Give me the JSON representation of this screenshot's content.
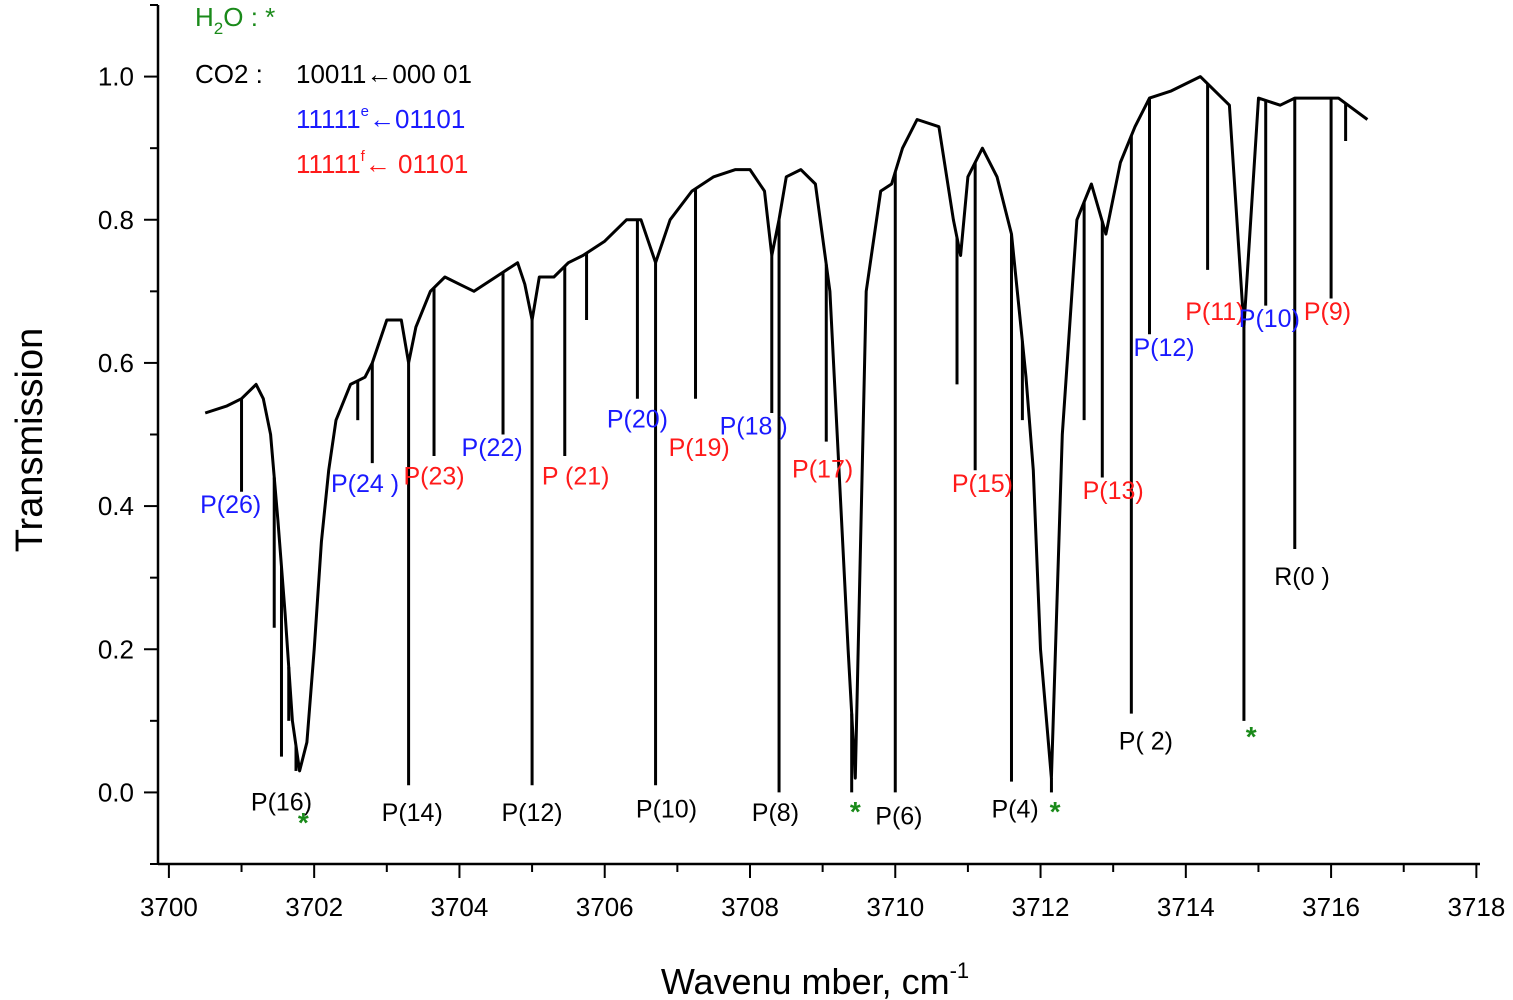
{
  "chart_data": {
    "type": "line",
    "title": "",
    "xlabel_main": "Wavenu mber, cm",
    "xlabel_sup": "-1",
    "ylabel": "Transmission",
    "xlim": [
      3699.85,
      3718.05
    ],
    "ylim": [
      -0.1,
      1.1
    ],
    "x_ticks": [
      3700,
      3702,
      3704,
      3706,
      3708,
      3710,
      3712,
      3714,
      3716,
      3718
    ],
    "x_tick_labels": [
      "3700",
      "3702",
      "3704",
      "3706",
      "3708",
      "3710",
      "3712",
      "3714",
      "3716",
      "3718"
    ],
    "y_ticks": [
      0.0,
      0.2,
      0.4,
      0.6,
      0.8,
      1.0
    ],
    "y_tick_labels": [
      "0.0",
      "0.2",
      "0.4",
      "0.6",
      "0.8",
      "1.0"
    ],
    "line_color": "#000000",
    "series": [
      {
        "x": [
          3700.5,
          3700.8,
          3701.0,
          3701.1,
          3701.2,
          3701.3,
          3701.4,
          3701.5,
          3701.6,
          3701.7,
          3701.8,
          3701.9,
          3702.0,
          3702.1,
          3702.2,
          3702.3,
          3702.5,
          3702.7,
          3702.8,
          3703.0,
          3703.2,
          3703.3,
          3703.4,
          3703.6,
          3703.8,
          3704.0,
          3704.2,
          3704.5,
          3704.8,
          3704.9,
          3705.0,
          3705.1,
          3705.3,
          3705.5,
          3705.7,
          3706.0,
          3706.3,
          3706.5,
          3706.7,
          3706.9,
          3707.2,
          3707.5,
          3707.8,
          3708.0,
          3708.2,
          3708.3,
          3708.4,
          3708.5,
          3708.7,
          3708.9,
          3709.1,
          3709.2,
          3709.35,
          3709.45,
          3709.6,
          3709.8,
          3709.95,
          3710.1,
          3710.3,
          3710.6,
          3710.8,
          3710.9,
          3711.0,
          3711.2,
          3711.4,
          3711.6,
          3711.8,
          3711.9,
          3712.0,
          3712.15,
          3712.3,
          3712.5,
          3712.7,
          3712.9,
          3713.1,
          3713.3,
          3713.5,
          3713.8,
          3714.2,
          3714.6,
          3714.8,
          3715.0,
          3715.3,
          3715.5,
          3715.8,
          3716.1,
          3716.5
        ],
        "y": [
          0.53,
          0.54,
          0.55,
          0.56,
          0.57,
          0.55,
          0.5,
          0.38,
          0.25,
          0.1,
          0.03,
          0.07,
          0.2,
          0.35,
          0.45,
          0.52,
          0.57,
          0.58,
          0.6,
          0.66,
          0.66,
          0.6,
          0.65,
          0.7,
          0.72,
          0.71,
          0.7,
          0.72,
          0.74,
          0.71,
          0.66,
          0.72,
          0.72,
          0.74,
          0.75,
          0.77,
          0.8,
          0.8,
          0.74,
          0.8,
          0.84,
          0.86,
          0.87,
          0.87,
          0.84,
          0.75,
          0.8,
          0.86,
          0.87,
          0.85,
          0.7,
          0.5,
          0.2,
          0.02,
          0.7,
          0.84,
          0.85,
          0.9,
          0.94,
          0.93,
          0.8,
          0.75,
          0.86,
          0.9,
          0.86,
          0.78,
          0.58,
          0.45,
          0.2,
          0.02,
          0.5,
          0.8,
          0.85,
          0.78,
          0.88,
          0.93,
          0.97,
          0.98,
          1.0,
          0.96,
          0.65,
          0.97,
          0.96,
          0.97,
          0.97,
          0.97,
          0.94
        ]
      }
    ],
    "lines_deep": [
      {
        "x": 3701.0,
        "y": 0.42
      },
      {
        "x": 3701.45,
        "y": 0.23
      },
      {
        "x": 3701.55,
        "y": 0.05
      },
      {
        "x": 3701.65,
        "y": 0.1
      },
      {
        "x": 3701.75,
        "y": 0.03
      },
      {
        "x": 3702.6,
        "y": 0.52
      },
      {
        "x": 3702.8,
        "y": 0.46
      },
      {
        "x": 3703.3,
        "y": 0.01
      },
      {
        "x": 3703.65,
        "y": 0.47
      },
      {
        "x": 3704.6,
        "y": 0.5
      },
      {
        "x": 3705.0,
        "y": 0.01
      },
      {
        "x": 3705.45,
        "y": 0.47
      },
      {
        "x": 3705.75,
        "y": 0.66
      },
      {
        "x": 3706.45,
        "y": 0.55
      },
      {
        "x": 3706.7,
        "y": 0.01
      },
      {
        "x": 3707.25,
        "y": 0.55
      },
      {
        "x": 3708.3,
        "y": 0.53
      },
      {
        "x": 3708.4,
        "y": 0.0
      },
      {
        "x": 3709.05,
        "y": 0.49
      },
      {
        "x": 3709.4,
        "y": -0.0
      },
      {
        "x": 3710.0,
        "y": 0.0
      },
      {
        "x": 3710.85,
        "y": 0.57
      },
      {
        "x": 3711.1,
        "y": 0.45
      },
      {
        "x": 3711.6,
        "y": 0.015
      },
      {
        "x": 3711.75,
        "y": 0.52
      },
      {
        "x": 3712.15,
        "y": 0.0
      },
      {
        "x": 3712.6,
        "y": 0.52
      },
      {
        "x": 3712.85,
        "y": 0.44
      },
      {
        "x": 3713.25,
        "y": 0.11
      },
      {
        "x": 3713.5,
        "y": 0.64
      },
      {
        "x": 3714.3,
        "y": 0.73
      },
      {
        "x": 3714.8,
        "y": 0.1
      },
      {
        "x": 3715.1,
        "y": 0.68
      },
      {
        "x": 3715.5,
        "y": 0.34
      },
      {
        "x": 3716.0,
        "y": 0.69
      },
      {
        "x": 3716.2,
        "y": 0.91
      }
    ],
    "annotations": [
      {
        "text": "P(26)",
        "x": 3700.85,
        "y": 0.39,
        "color": "#1a1aff"
      },
      {
        "text": "P(24 )",
        "x": 3702.7,
        "y": 0.42,
        "color": "#1a1aff"
      },
      {
        "text": "P(23)",
        "x": 3703.65,
        "y": 0.43,
        "color": "#ff1a1a"
      },
      {
        "text": "P(22)",
        "x": 3704.45,
        "y": 0.47,
        "color": "#1a1aff"
      },
      {
        "text": "P (21)",
        "x": 3705.6,
        "y": 0.43,
        "color": "#ff1a1a"
      },
      {
        "text": "P(20)",
        "x": 3706.45,
        "y": 0.51,
        "color": "#1a1aff"
      },
      {
        "text": "P(19)",
        "x": 3707.3,
        "y": 0.47,
        "color": "#ff1a1a"
      },
      {
        "text": "P(18 )",
        "x": 3708.05,
        "y": 0.5,
        "color": "#1a1aff"
      },
      {
        "text": "P(17)",
        "x": 3709.0,
        "y": 0.44,
        "color": "#ff1a1a"
      },
      {
        "text": "P(15)",
        "x": 3711.2,
        "y": 0.42,
        "color": "#ff1a1a"
      },
      {
        "text": "P(13)",
        "x": 3713.0,
        "y": 0.41,
        "color": "#ff1a1a"
      },
      {
        "text": "P(12)",
        "x": 3713.7,
        "y": 0.61,
        "color": "#1a1aff"
      },
      {
        "text": "P(11)",
        "x": 3714.4,
        "y": 0.66,
        "color": "#ff1a1a"
      },
      {
        "text": "P(10)",
        "x": 3715.15,
        "y": 0.65,
        "color": "#1a1aff"
      },
      {
        "text": "P(9)",
        "x": 3715.95,
        "y": 0.66,
        "color": "#ff1a1a"
      },
      {
        "text": "R(0 )",
        "x": 3715.6,
        "y": 0.29,
        "color": "#000000"
      },
      {
        "text": "P( 2)",
        "x": 3713.45,
        "y": 0.06,
        "color": "#000000"
      },
      {
        "text": "P(16)",
        "x": 3701.55,
        "y": -0.025,
        "color": "#000000"
      },
      {
        "text": "P(14)",
        "x": 3703.35,
        "y": -0.04,
        "color": "#000000"
      },
      {
        "text": "P(12)",
        "x": 3705.0,
        "y": -0.04,
        "color": "#000000"
      },
      {
        "text": "P(10)",
        "x": 3706.85,
        "y": -0.035,
        "color": "#000000"
      },
      {
        "text": "P(8)",
        "x": 3708.35,
        "y": -0.04,
        "color": "#000000"
      },
      {
        "text": "P(6)",
        "x": 3710.05,
        "y": -0.045,
        "color": "#000000"
      },
      {
        "text": "P(4)",
        "x": 3711.65,
        "y": -0.035,
        "color": "#000000"
      }
    ],
    "stars": [
      {
        "x": 3701.85,
        "y": -0.055
      },
      {
        "x": 3709.45,
        "y": -0.04
      },
      {
        "x": 3712.2,
        "y": -0.04
      },
      {
        "x": 3714.9,
        "y": 0.065
      }
    ],
    "legend": {
      "h2o": {
        "text_h": "H",
        "text_sub": "2",
        "text_rest": "O : *",
        "color": "#1a8a1a"
      },
      "co2_label": "CO2 :",
      "entries": [
        {
          "text_a": "10011",
          "sup": "",
          "text_b": "←000 01",
          "color": "#000000"
        },
        {
          "text_a": "11111",
          "sup": "e",
          "text_b": "←01101",
          "color": "#1a1aff"
        },
        {
          "text_a": "11111",
          "sup": "f",
          "text_b": "← 01101",
          "color": "#ff1a1a"
        }
      ]
    }
  }
}
